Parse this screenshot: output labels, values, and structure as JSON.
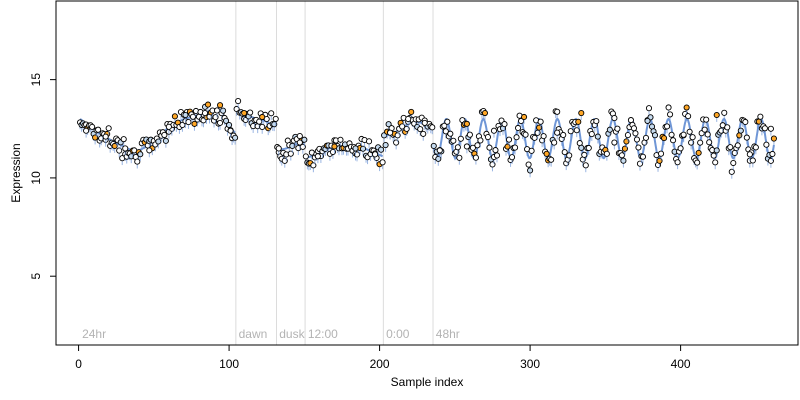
{
  "chart_data": {
    "type": "scatter",
    "title": "",
    "xlabel": "Sample index",
    "ylabel": "Expression",
    "xlim": [
      -15,
      478
    ],
    "ylim": [
      1.5,
      19
    ],
    "x_ticks": [
      0,
      100,
      200,
      300,
      400
    ],
    "y_ticks": [
      5,
      10,
      15
    ],
    "grid": false,
    "legend": "none",
    "point_colors": {
      "high": "#ffa726",
      "mid": "#c6dbef",
      "low": "#ffffff"
    },
    "fit_line_color": "#6f96d6",
    "divider_color": "#dcdcdc",
    "regions": [
      {
        "label": "24hr",
        "start": 1
      },
      {
        "label": "dawn",
        "start": 105
      },
      {
        "label": "dusk",
        "start": 132
      },
      {
        "label": "12:00",
        "start": 151
      },
      {
        "label": "0:00",
        "start": 203
      },
      {
        "label": "48hr",
        "start": 236
      }
    ],
    "segments": [
      {
        "x0": 1,
        "x1": 104,
        "kind": "smooth",
        "knots": [
          [
            1,
            13.0
          ],
          [
            8,
            12.6
          ],
          [
            15,
            12.2
          ],
          [
            22,
            11.9
          ],
          [
            30,
            11.6
          ],
          [
            38,
            11.3
          ],
          [
            45,
            11.6
          ],
          [
            52,
            12.0
          ],
          [
            60,
            12.6
          ],
          [
            70,
            13.0
          ],
          [
            80,
            13.2
          ],
          [
            90,
            13.5
          ],
          [
            96,
            13.2
          ],
          [
            100,
            12.6
          ],
          [
            104,
            12.3
          ]
        ]
      },
      {
        "x0": 105,
        "x1": 131,
        "kind": "smooth",
        "knots": [
          [
            105,
            13.3
          ],
          [
            112,
            13.2
          ],
          [
            118,
            13.0
          ],
          [
            124,
            12.9
          ],
          [
            131,
            12.6
          ]
        ]
      },
      {
        "x0": 132,
        "x1": 150,
        "kind": "smooth",
        "knots": [
          [
            132,
            11.4
          ],
          [
            138,
            11.5
          ],
          [
            144,
            11.7
          ],
          [
            150,
            11.8
          ]
        ]
      },
      {
        "x0": 151,
        "x1": 202,
        "kind": "smooth",
        "knots": [
          [
            151,
            11.0
          ],
          [
            158,
            11.2
          ],
          [
            166,
            11.5
          ],
          [
            174,
            11.6
          ],
          [
            182,
            11.6
          ],
          [
            190,
            11.5
          ],
          [
            196,
            11.3
          ],
          [
            202,
            11.1
          ]
        ]
      },
      {
        "x0": 203,
        "x1": 235,
        "kind": "smooth",
        "knots": [
          [
            203,
            12.1
          ],
          [
            210,
            12.3
          ],
          [
            216,
            12.6
          ],
          [
            222,
            12.9
          ],
          [
            228,
            12.8
          ],
          [
            235,
            12.5
          ]
        ]
      },
      {
        "x0": 236,
        "x1": 462,
        "kind": "oscillation",
        "mean": 12.0,
        "amplitude": 1.0,
        "period": 12.3,
        "phase": 3.6
      }
    ],
    "points": [
      {
        "x": 5,
        "y": 12.4,
        "level": "low"
      },
      {
        "x": 18,
        "y": 12.1,
        "level": "low"
      },
      {
        "x": 31,
        "y": 11.5,
        "level": "low"
      },
      {
        "x": 47,
        "y": 11.4,
        "level": "low"
      },
      {
        "x": 60,
        "y": 12.6,
        "level": "low"
      },
      {
        "x": 71,
        "y": 13.2,
        "level": "mid"
      },
      {
        "x": 84,
        "y": 13.3,
        "level": "low"
      },
      {
        "x": 94,
        "y": 13.7,
        "level": "high"
      },
      {
        "x": 101,
        "y": 12.4,
        "level": "low"
      },
      {
        "x": 110,
        "y": 13.3,
        "level": "high"
      },
      {
        "x": 122,
        "y": 13.1,
        "level": "high"
      },
      {
        "x": 133,
        "y": 11.5,
        "level": "low"
      },
      {
        "x": 147,
        "y": 11.8,
        "level": "low"
      },
      {
        "x": 159,
        "y": 11.1,
        "level": "low"
      },
      {
        "x": 170,
        "y": 11.6,
        "level": "high"
      },
      {
        "x": 184,
        "y": 11.5,
        "level": "mid"
      },
      {
        "x": 197,
        "y": 11.2,
        "level": "low"
      },
      {
        "x": 207,
        "y": 12.3,
        "level": "low"
      },
      {
        "x": 219,
        "y": 13.0,
        "level": "low"
      },
      {
        "x": 230,
        "y": 12.8,
        "level": "low"
      },
      {
        "x": 240,
        "y": 11.4,
        "level": "low"
      },
      {
        "x": 258,
        "y": 11.6,
        "level": "low"
      },
      {
        "x": 276,
        "y": 12.4,
        "level": "low"
      },
      {
        "x": 296,
        "y": 13.1,
        "level": "high"
      },
      {
        "x": 318,
        "y": 12.3,
        "level": "low"
      },
      {
        "x": 334,
        "y": 13.3,
        "level": "high"
      },
      {
        "x": 356,
        "y": 11.8,
        "level": "low"
      },
      {
        "x": 378,
        "y": 12.9,
        "level": "mid"
      },
      {
        "x": 402,
        "y": 12.2,
        "level": "low"
      },
      {
        "x": 424,
        "y": 13.2,
        "level": "high"
      },
      {
        "x": 446,
        "y": 11.2,
        "level": "low"
      },
      {
        "x": 460,
        "y": 12.5,
        "level": "low"
      }
    ]
  }
}
